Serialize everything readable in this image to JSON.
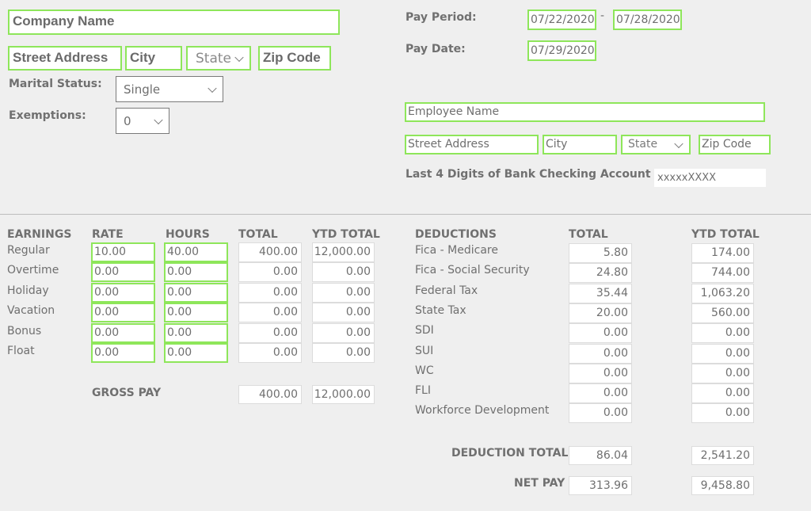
{
  "company": {
    "name_placeholder": "Company Name",
    "street_placeholder": "Street Address",
    "city_placeholder": "City",
    "state_selected": "State",
    "zip_placeholder": "Zip Code"
  },
  "marital": {
    "label": "Marital Status:",
    "selected": "Single"
  },
  "exemptions": {
    "label": "Exemptions:",
    "selected": "0"
  },
  "pay_period": {
    "label": "Pay Period:",
    "start": "07/22/2020",
    "separator": "-",
    "end": "07/28/2020"
  },
  "pay_date": {
    "label": "Pay Date:",
    "value": "07/29/2020"
  },
  "employee": {
    "name_placeholder": "Employee Name",
    "street_placeholder": "Street Address",
    "city_placeholder": "City",
    "state_selected": "State",
    "zip_placeholder": "Zip Code",
    "bank_label": "Last 4 Digits of Bank Checking Account",
    "bank_value": "xxxxxXXXX"
  },
  "earnings": {
    "headers": {
      "name": "EARNINGS",
      "rate": "RATE",
      "hours": "HOURS",
      "total": "TOTAL",
      "ytd": "YTD TOTAL"
    },
    "rows": [
      {
        "label": "Regular",
        "rate": "10.00",
        "hours": "40.00",
        "total": "400.00",
        "ytd": "12,000.00"
      },
      {
        "label": "Overtime",
        "rate": "0.00",
        "hours": "0.00",
        "total": "0.00",
        "ytd": "0.00"
      },
      {
        "label": "Holiday",
        "rate": "0.00",
        "hours": "0.00",
        "total": "0.00",
        "ytd": "0.00"
      },
      {
        "label": "Vacation",
        "rate": "0.00",
        "hours": "0.00",
        "total": "0.00",
        "ytd": "0.00"
      },
      {
        "label": "Bonus",
        "rate": "0.00",
        "hours": "0.00",
        "total": "0.00",
        "ytd": "0.00"
      },
      {
        "label": "Float",
        "rate": "0.00",
        "hours": "0.00",
        "total": "0.00",
        "ytd": "0.00"
      }
    ],
    "gross": {
      "label": "GROSS PAY",
      "total": "400.00",
      "ytd": "12,000.00"
    }
  },
  "deductions": {
    "headers": {
      "name": "DEDUCTIONS",
      "total": "TOTAL",
      "ytd": "YTD TOTAL"
    },
    "rows": [
      {
        "label": "Fica - Medicare",
        "total": "5.80",
        "ytd": "174.00"
      },
      {
        "label": "Fica - Social Security",
        "total": "24.80",
        "ytd": "744.00"
      },
      {
        "label": "Federal Tax",
        "total": "35.44",
        "ytd": "1,063.20"
      },
      {
        "label": "State Tax",
        "total": "20.00",
        "ytd": "560.00"
      },
      {
        "label": "SDI",
        "total": "0.00",
        "ytd": "0.00"
      },
      {
        "label": "SUI",
        "total": "0.00",
        "ytd": "0.00"
      },
      {
        "label": "WC",
        "total": "0.00",
        "ytd": "0.00"
      },
      {
        "label": "FLI",
        "total": "0.00",
        "ytd": "0.00"
      },
      {
        "label": "Workforce Development",
        "total": "0.00",
        "ytd": "0.00"
      }
    ],
    "deduction_total": {
      "label": "DEDUCTION TOTAL",
      "total": "86.04",
      "ytd": "2,541.20"
    },
    "net_pay": {
      "label": "NET PAY",
      "total": "313.96",
      "ytd": "9,458.80"
    }
  },
  "colors": {
    "accent_border": "#8ee65a",
    "background": "#efefef",
    "text": "#6f6f6f"
  }
}
